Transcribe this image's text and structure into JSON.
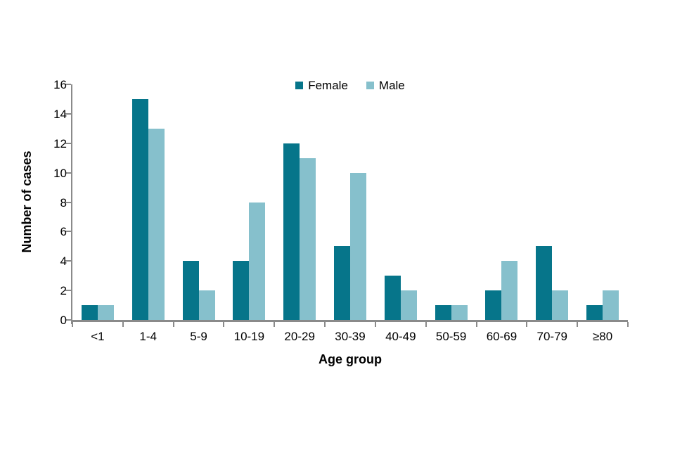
{
  "chart_data": {
    "type": "bar",
    "title": "",
    "categories": [
      "<1",
      "1-4",
      "5-9",
      "10-19",
      "20-29",
      "30-39",
      "40-49",
      "50-59",
      "60-69",
      "70-79",
      "≥80"
    ],
    "series": [
      {
        "name": "Female",
        "color": "#06758A",
        "values": [
          1,
          15,
          4,
          4,
          12,
          5,
          3,
          1,
          2,
          5,
          1
        ]
      },
      {
        "name": "Male",
        "color": "#86C0CC",
        "values": [
          1,
          13,
          2,
          8,
          11,
          10,
          2,
          1,
          4,
          2,
          2
        ]
      }
    ],
    "xlabel": "Age group",
    "ylabel": "Number of cases",
    "ylim": [
      0,
      16
    ],
    "ytick_step": 2,
    "yticks": [
      0,
      2,
      4,
      6,
      8,
      10,
      12,
      14,
      16
    ],
    "legend_position": "top-center",
    "grid": false,
    "axis_color": "#8A8A8A",
    "text_color": "#000000"
  }
}
